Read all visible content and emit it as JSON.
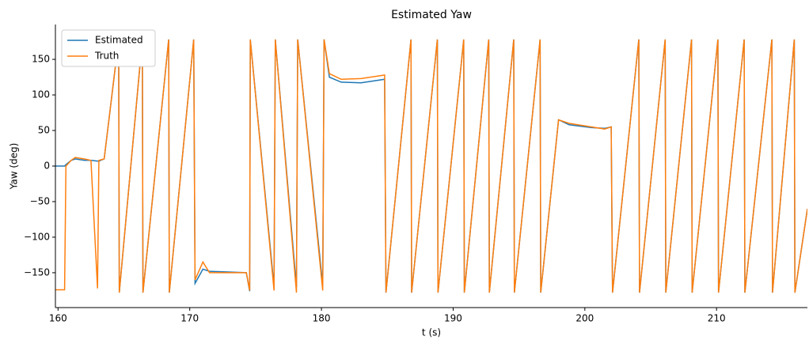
{
  "chart_data": {
    "type": "line",
    "title": "Estimated Yaw",
    "xlabel": "t (s)",
    "ylabel": "Yaw (deg)",
    "x": [
      159.8,
      160.5,
      160.6,
      161.0,
      161.3,
      162.0,
      162.5,
      163.0,
      163.1,
      163.5,
      164.6,
      164.65,
      166.4,
      166.45,
      168.4,
      168.45,
      170.3,
      170.4,
      171.0,
      171.5,
      174.3,
      174.55,
      174.6,
      176.4,
      176.5,
      178.1,
      178.2,
      180.1,
      180.2,
      180.6,
      181.5,
      183.0,
      184.8,
      184.9,
      186.8,
      186.85,
      188.8,
      188.85,
      190.8,
      190.85,
      192.7,
      192.75,
      194.6,
      194.65,
      196.6,
      196.65,
      198.0,
      198.8,
      200.5,
      201.5,
      202.0,
      202.1,
      204.1,
      204.15,
      206.1,
      206.15,
      208.1,
      208.15,
      210.1,
      210.15,
      212.1,
      212.15,
      214.2,
      214.25,
      215.9,
      215.95,
      216.9
    ],
    "series": [
      {
        "name": "Estimated",
        "color": "#1f77b4",
        "values": [
          0,
          0,
          2,
          8,
          10,
          8,
          8,
          7,
          7,
          10,
          178,
          -178,
          178,
          -178,
          178,
          -178,
          178,
          -165,
          -145,
          -148,
          -150,
          -176,
          178,
          -170,
          178,
          -170,
          178,
          -168,
          178,
          125,
          118,
          117,
          122,
          -178,
          178,
          -178,
          178,
          -178,
          178,
          -178,
          178,
          -178,
          178,
          -178,
          178,
          -178,
          65,
          58,
          54,
          53,
          55,
          -178,
          178,
          -178,
          178,
          -178,
          178,
          -178,
          178,
          -178,
          178,
          -178,
          178,
          -178,
          178,
          -178,
          -60
        ]
      },
      {
        "name": "Truth",
        "color": "#ff7f0e",
        "values": [
          -174,
          -174,
          0,
          8,
          12,
          10,
          8,
          -172,
          8,
          10,
          178,
          -178,
          178,
          -178,
          178,
          -178,
          178,
          -160,
          -135,
          -150,
          -150,
          -175,
          178,
          -175,
          178,
          -178,
          178,
          -175,
          178,
          130,
          122,
          123,
          128,
          -178,
          178,
          -178,
          178,
          -178,
          178,
          -178,
          178,
          -178,
          178,
          -178,
          178,
          -178,
          65,
          60,
          55,
          52,
          55,
          -178,
          178,
          -178,
          178,
          -178,
          178,
          -178,
          178,
          -178,
          178,
          -178,
          178,
          -178,
          178,
          -178,
          -60
        ]
      }
    ],
    "xlim": [
      159.8,
      216.9
    ],
    "ylim": [
      -199,
      199
    ],
    "xticks": [
      160,
      170,
      180,
      190,
      200,
      210
    ],
    "yticks": [
      {
        "value": -150,
        "label": "−150"
      },
      {
        "value": -100,
        "label": "−100"
      },
      {
        "value": -50,
        "label": "−50"
      },
      0,
      50,
      100,
      150
    ],
    "legend": "upper left"
  }
}
